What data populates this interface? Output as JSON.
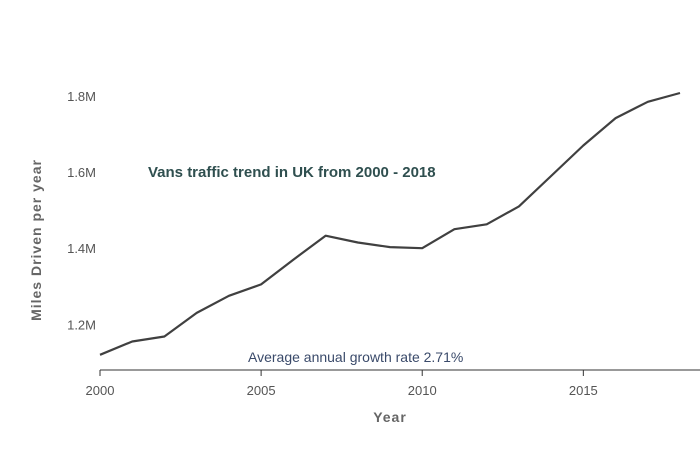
{
  "chart_data": {
    "type": "line",
    "title": "Vans traffic trend in UK from 2000 - 2018",
    "xlabel": "Year",
    "ylabel": "Miles Driven per year",
    "annotation": "Average annual growth rate 2.71%",
    "x": [
      2000,
      2001,
      2002,
      2003,
      2004,
      2005,
      2006,
      2007,
      2008,
      2009,
      2010,
      2011,
      2012,
      2013,
      2014,
      2015,
      2016,
      2017,
      2018
    ],
    "series": [
      {
        "values": [
          1120000,
          1155000,
          1168000,
          1230000,
          1275000,
          1305000,
          1370000,
          1433000,
          1415000,
          1403000,
          1400000,
          1450000,
          1463000,
          1510000,
          1590000,
          1670000,
          1742000,
          1785000,
          1808000
        ],
        "color": "#404040"
      }
    ],
    "xticks": [
      2000,
      2005,
      2010,
      2015
    ],
    "xtick_labels": [
      "2000",
      "2005",
      "2010",
      "2015"
    ],
    "yticks": [
      1200000,
      1400000,
      1600000,
      1800000
    ],
    "ytick_labels": [
      "1.2M",
      "1.4M",
      "1.6M",
      "1.8M"
    ],
    "xlim": [
      2000,
      2018
    ],
    "ylim": [
      1080000,
      1900000
    ],
    "grid": false,
    "legend": "none"
  }
}
